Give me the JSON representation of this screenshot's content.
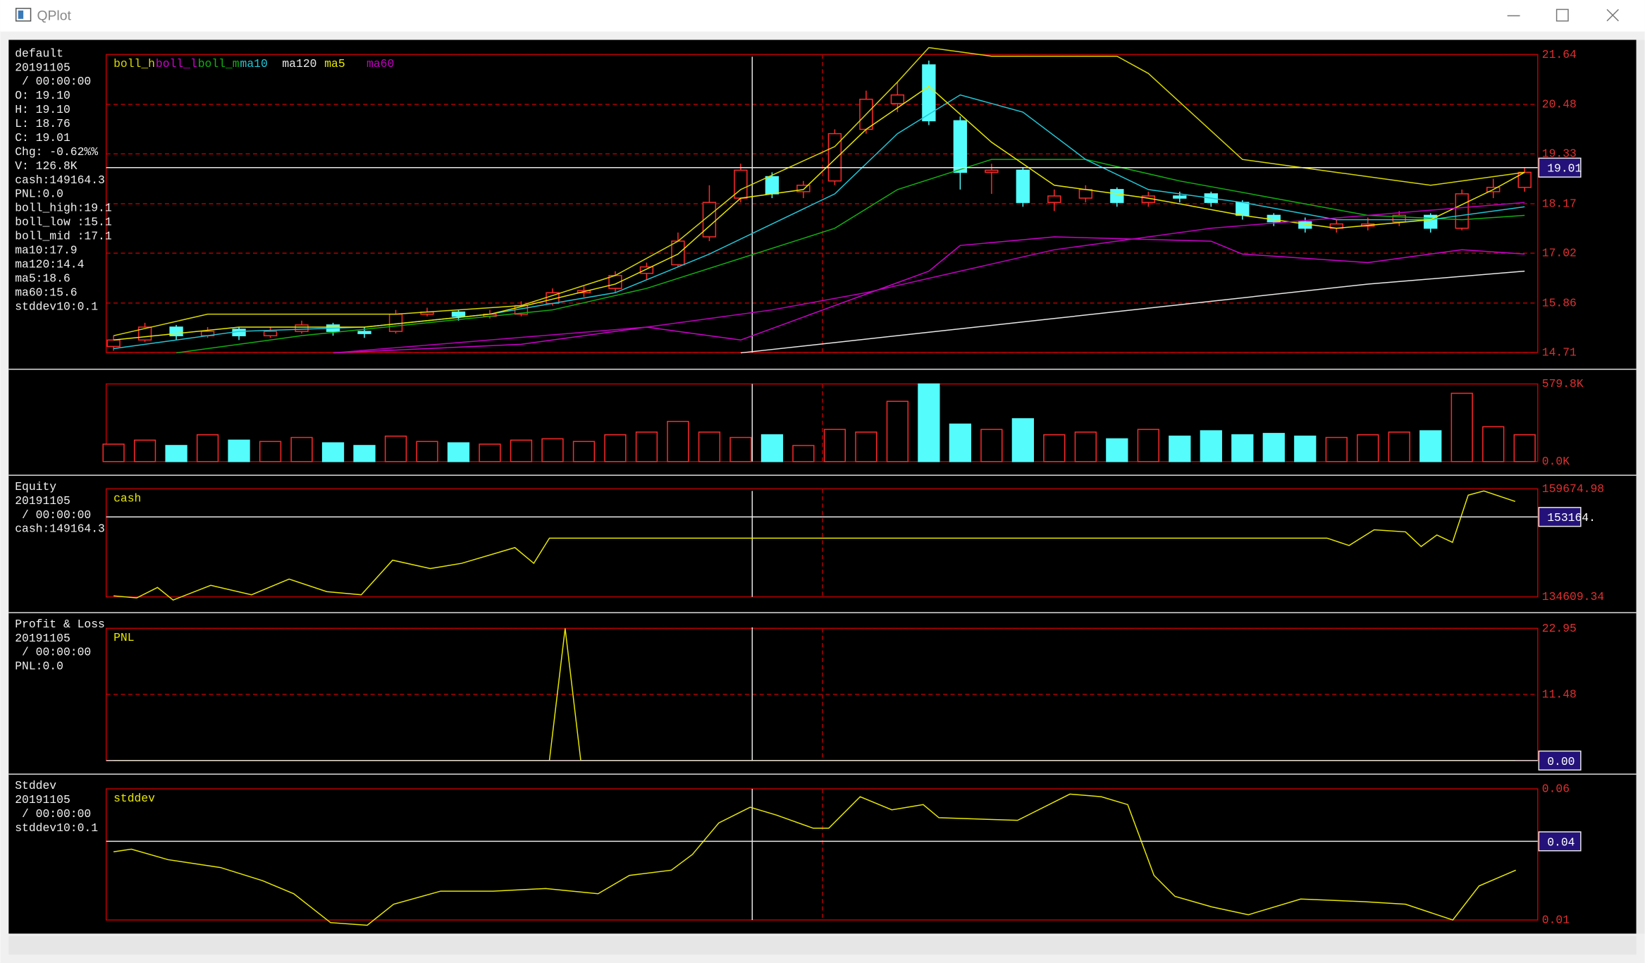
{
  "window": {
    "title": "QPlot"
  },
  "panels": [
    {
      "type": "candlestick",
      "info": [
        "default",
        "20191105",
        " / 00:00:00",
        "O: 19.10",
        "H: 19.10",
        "L: 18.76",
        "C: 19.01",
        "Chg: -0.62%%",
        "V: 126.8K",
        "cash:149164.3",
        "PNL:0.0",
        "boll_high:19.1",
        "boll_low :15.1",
        "boll_mid :17.1",
        "ma10:17.9",
        "ma120:14.4",
        "ma5:18.6",
        "ma60:15.6",
        "stddev10:0.1"
      ],
      "candles": {
        "open": [
          14.85,
          15.0,
          15.3,
          15.1,
          15.25,
          15.1,
          15.2,
          15.35,
          15.2,
          15.2,
          15.6,
          15.65,
          15.55,
          15.6,
          15.85,
          16.1,
          16.2,
          16.55,
          16.75,
          17.4,
          18.3,
          18.8,
          18.45,
          18.7,
          19.9,
          20.5,
          21.4,
          20.1,
          18.9,
          18.95,
          18.2,
          18.3,
          18.5,
          18.2,
          18.35,
          18.4,
          18.2,
          17.9,
          17.75,
          17.6,
          17.65,
          17.75,
          17.9,
          17.6,
          18.45,
          18.55
        ],
        "high": [
          15.1,
          15.4,
          15.35,
          15.3,
          15.3,
          15.3,
          15.45,
          15.4,
          15.3,
          15.7,
          15.75,
          15.7,
          15.7,
          15.9,
          16.2,
          16.25,
          16.6,
          16.8,
          17.5,
          18.6,
          19.1,
          18.9,
          18.7,
          19.9,
          20.8,
          21.0,
          21.5,
          20.2,
          19.1,
          19.0,
          18.5,
          18.6,
          18.55,
          18.45,
          18.45,
          18.45,
          18.25,
          17.95,
          17.85,
          17.8,
          17.85,
          18.0,
          17.95,
          18.5,
          18.75,
          19.0
        ],
        "low": [
          14.75,
          14.95,
          15.0,
          15.05,
          15.0,
          15.05,
          15.15,
          15.1,
          15.05,
          15.15,
          15.55,
          15.45,
          15.5,
          15.55,
          15.8,
          16.0,
          16.1,
          16.4,
          16.7,
          17.3,
          18.2,
          18.3,
          18.3,
          18.6,
          19.8,
          20.3,
          20.0,
          18.5,
          18.4,
          18.1,
          18.0,
          18.2,
          18.1,
          18.1,
          18.2,
          18.1,
          17.8,
          17.65,
          17.5,
          17.5,
          17.55,
          17.65,
          17.5,
          17.55,
          18.3,
          18.45
        ],
        "close": [
          15.0,
          15.3,
          15.1,
          15.2,
          15.1,
          15.2,
          15.35,
          15.2,
          15.15,
          15.6,
          15.65,
          15.55,
          15.6,
          15.8,
          16.1,
          16.15,
          16.5,
          16.7,
          17.3,
          18.2,
          18.95,
          18.4,
          18.6,
          19.8,
          20.6,
          20.7,
          20.1,
          18.9,
          18.95,
          18.2,
          18.35,
          18.5,
          18.2,
          18.35,
          18.3,
          18.2,
          17.9,
          17.75,
          17.6,
          17.7,
          17.7,
          17.9,
          17.6,
          18.4,
          18.55,
          18.9
        ]
      },
      "up_color": "#ff2a2a",
      "down_color": "#54fcfc",
      "lines": [
        {
          "name": "boll_h",
          "color": "#d8d800",
          "x": [
            0,
            3,
            9,
            13,
            16,
            18,
            20,
            23,
            25,
            26,
            28,
            32,
            33,
            36,
            39,
            42,
            45
          ],
          "values": [
            15.1,
            15.6,
            15.6,
            15.8,
            16.5,
            17.3,
            18.5,
            19.5,
            21.0,
            21.8,
            21.6,
            21.6,
            21.2,
            19.2,
            18.9,
            18.6,
            18.9
          ]
        },
        {
          "name": "boll_l",
          "color": "#d000d0",
          "x": [
            7,
            13,
            17,
            20,
            23,
            26,
            27,
            30,
            35,
            36,
            40,
            43,
            45
          ],
          "values": [
            14.7,
            14.9,
            15.3,
            15.0,
            15.8,
            16.6,
            17.2,
            17.4,
            17.3,
            17.0,
            16.8,
            17.1,
            17.0
          ]
        },
        {
          "name": "boll_m",
          "color": "#10b010",
          "x": [
            2,
            6,
            10,
            14,
            17,
            20,
            23,
            25,
            28,
            31,
            34,
            37,
            40,
            43,
            45
          ],
          "values": [
            14.7,
            15.1,
            15.4,
            15.7,
            16.2,
            16.9,
            17.6,
            18.5,
            19.2,
            19.2,
            18.7,
            18.3,
            17.9,
            17.8,
            17.9
          ]
        },
        {
          "name": "ma10",
          "color": "#20c8d8",
          "x": [
            0,
            4,
            8,
            12,
            16,
            19,
            21,
            23,
            25,
            27,
            29,
            31,
            33,
            36,
            39,
            42,
            45
          ],
          "values": [
            14.8,
            15.2,
            15.3,
            15.6,
            16.1,
            17.0,
            17.7,
            18.4,
            19.8,
            20.7,
            20.3,
            19.2,
            18.5,
            18.2,
            17.8,
            17.8,
            18.1
          ]
        },
        {
          "name": "ma120",
          "color": "#e8e8e8",
          "x": [
            20,
            25,
            30,
            35,
            40,
            45
          ],
          "values": [
            14.7,
            15.1,
            15.5,
            15.9,
            16.3,
            16.6
          ]
        },
        {
          "name": "ma5",
          "color": "#e8e800",
          "x": [
            0,
            4,
            8,
            12,
            16,
            18,
            20,
            22,
            24,
            26,
            28,
            30,
            33,
            36,
            39,
            42,
            44,
            45
          ],
          "values": [
            15.0,
            15.3,
            15.3,
            15.6,
            16.3,
            17.0,
            18.3,
            18.5,
            19.9,
            20.9,
            19.6,
            18.6,
            18.3,
            17.9,
            17.6,
            17.8,
            18.5,
            18.9
          ]
        },
        {
          "name": "ma60",
          "color": "#c000c0",
          "x": [
            7,
            12,
            17,
            21,
            24,
            27,
            30,
            35,
            40,
            45
          ],
          "values": [
            14.7,
            15.0,
            15.3,
            15.7,
            16.1,
            16.6,
            17.1,
            17.6,
            17.9,
            18.2
          ]
        }
      ],
      "ylim": [
        14.71,
        21.64
      ],
      "yticks": [
        21.64,
        20.48,
        19.33,
        18.17,
        17.02,
        15.86,
        14.71
      ],
      "grid": true,
      "cursor": 19.01
    },
    {
      "type": "volume",
      "values": [
        130,
        160,
        120,
        200,
        160,
        150,
        180,
        140,
        120,
        190,
        150,
        140,
        130,
        160,
        170,
        150,
        200,
        220,
        300,
        220,
        180,
        200,
        120,
        240,
        220,
        450,
        579.8,
        280,
        240,
        320,
        200,
        220,
        170,
        240,
        190,
        230,
        200,
        210,
        190,
        180,
        200,
        220,
        230,
        510,
        260,
        200
      ],
      "ylim": [
        0,
        579.8
      ],
      "yticks": [
        {
          "value": 579.8,
          "label": "579.8K"
        },
        {
          "value": 0,
          "label": "0.0K"
        }
      ],
      "grid": false
    },
    {
      "type": "line",
      "info": [
        "Equity",
        "20191105",
        " / 00:00:00",
        "cash:149164.3"
      ],
      "lines": [
        {
          "name": "cash",
          "color": "#e8e800",
          "x": [
            0,
            0.74,
            1.4,
            1.9,
            3.1,
            4.4,
            5.6,
            6.8,
            7.9,
            8.9,
            10.1,
            11.1,
            12.8,
            13.4,
            13.9,
            38.7,
            39.4,
            40.2,
            41.2,
            41.7,
            42.2,
            42.7,
            43.2,
            43.7,
            44.7
          ],
          "values": [
            134852,
            134366,
            136800,
            133879,
            137286,
            135096,
            138746,
            135826,
            135096,
            143127,
            141180,
            142397,
            146047,
            142397,
            148237,
            148237,
            146534,
            150184,
            149697,
            146290,
            148967,
            147263,
            158215,
            159188,
            156754
          ]
        }
      ],
      "ylim": [
        134609.34,
        159674.98
      ],
      "yticks": [
        159674.98,
        134609.34
      ],
      "grid": false,
      "cursor": {
        "value": 153164,
        "label": "153164."
      }
    },
    {
      "type": "line",
      "info": [
        "Profit & Loss",
        "20191105",
        " / 00:00:00",
        "PNL:0.0"
      ],
      "lines": [
        {
          "name": "PNL",
          "color": "#e8e800",
          "x": [
            0,
            13.9,
            14.4,
            14.9,
            44.7
          ],
          "values": [
            0,
            0,
            22.95,
            0,
            0
          ]
        }
      ],
      "ylim": [
        0,
        22.95
      ],
      "yticks": [
        22.95,
        11.48
      ],
      "grid": true,
      "cursor": {
        "value": 0,
        "label": "0.00"
      }
    },
    {
      "type": "line",
      "info": [
        "Stddev",
        "20191105",
        " / 00:00:00",
        "stddev10:0.1"
      ],
      "lines": [
        {
          "name": "stddev",
          "color": "#e8e800",
          "x": [
            0,
            0.57,
            1.74,
            3.41,
            4.75,
            5.75,
            6.92,
            8.09,
            8.93,
            10.43,
            12.1,
            13.78,
            15.45,
            16.45,
            17.79,
            18.46,
            19.3,
            20.3,
            21.14,
            22.31,
            22.81,
            23.81,
            24.82,
            25.82,
            26.32,
            28.83,
            30.5,
            31.5,
            32.34,
            33.18,
            33.85,
            35.02,
            36.19,
            37.86,
            39.87,
            41.2,
            42.71,
            43.55,
            44.72
          ],
          "values": [
            0.036,
            0.037,
            0.033,
            0.03,
            0.025,
            0.02,
            0.009,
            0.008,
            0.016,
            0.021,
            0.021,
            0.022,
            0.02,
            0.027,
            0.029,
            0.035,
            0.047,
            0.053,
            0.05,
            0.045,
            0.045,
            0.057,
            0.052,
            0.054,
            0.049,
            0.048,
            0.058,
            0.057,
            0.054,
            0.027,
            0.019,
            0.015,
            0.012,
            0.018,
            0.017,
            0.016,
            0.01,
            0.023,
            0.029
          ]
        }
      ],
      "ylim": [
        0.01,
        0.06
      ],
      "yticks": [
        0.06,
        0.01
      ],
      "grid": false,
      "cursor": 0.04
    }
  ]
}
